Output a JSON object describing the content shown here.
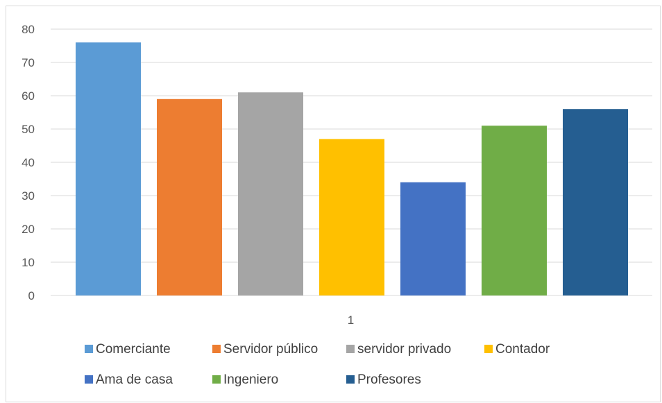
{
  "chart_data": {
    "type": "bar",
    "categories": [
      "1"
    ],
    "series": [
      {
        "name": "Comerciante",
        "values": [
          76
        ],
        "color": "#5b9bd5"
      },
      {
        "name": "Servidor público",
        "values": [
          59
        ],
        "color": "#ed7d31"
      },
      {
        "name": "servidor privado",
        "values": [
          61
        ],
        "color": "#a5a5a5"
      },
      {
        "name": "Contador",
        "values": [
          47
        ],
        "color": "#ffc000"
      },
      {
        "name": "Ama de casa",
        "values": [
          34
        ],
        "color": "#4472c4"
      },
      {
        "name": "Ingeniero",
        "values": [
          51
        ],
        "color": "#70ad47"
      },
      {
        "name": "Profesores",
        "values": [
          56
        ],
        "color": "#255e91"
      }
    ],
    "ylim": [
      0,
      80
    ],
    "yticks": [
      0,
      10,
      20,
      30,
      40,
      50,
      60,
      70,
      80
    ],
    "grid": true,
    "legend": "bottom",
    "title": "",
    "xlabel": "",
    "ylabel": ""
  }
}
